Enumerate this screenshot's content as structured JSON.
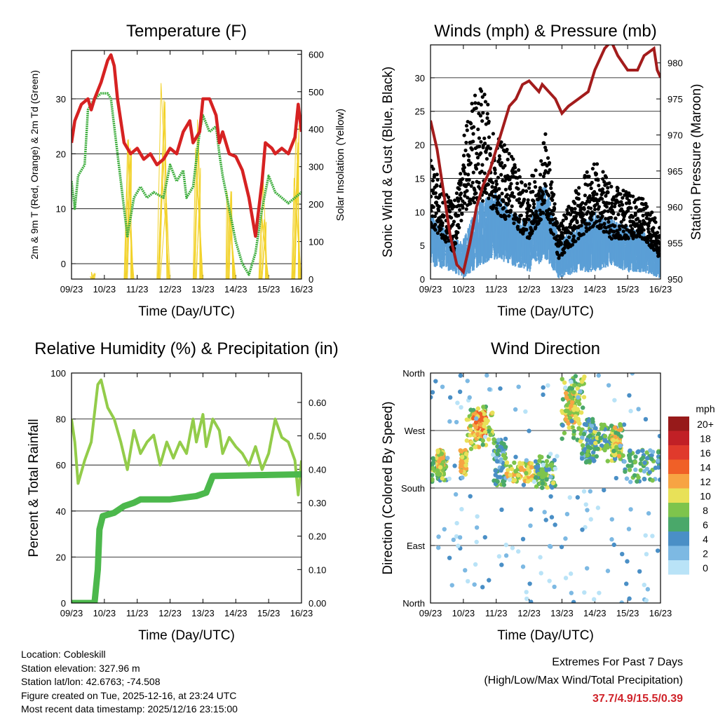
{
  "chart_data": [
    {
      "type": "line",
      "title": "Temperature (F)",
      "xlabel": "Time (Day/UTC)",
      "ylabel": "2m & 9m T (Red, Orange) & 2m Td (Green)",
      "y2label": "Solar Insolation (Yellow)",
      "xticks": [
        "09/23",
        "10/23",
        "11/23",
        "12/23",
        "13/23",
        "14/23",
        "15/23",
        "16/23"
      ],
      "xlim": [
        0,
        7
      ],
      "ylim": [
        -2.8,
        38.8
      ],
      "yticks": [
        0,
        10,
        20,
        30
      ],
      "y2lim": [
        0,
        610
      ],
      "y2ticks": [
        0,
        100,
        200,
        300,
        400,
        500,
        600
      ],
      "grid": true,
      "series": [
        {
          "name": "Temperature",
          "color": "#d62222",
          "points": [
            [
              0,
              22
            ],
            [
              0.1,
              26
            ],
            [
              0.3,
              29
            ],
            [
              0.5,
              30
            ],
            [
              0.6,
              28
            ],
            [
              0.7,
              30
            ],
            [
              0.9,
              33
            ],
            [
              1.1,
              37
            ],
            [
              1.2,
              38
            ],
            [
              1.3,
              36
            ],
            [
              1.4,
              30
            ],
            [
              1.6,
              22
            ],
            [
              1.8,
              20
            ],
            [
              2.0,
              21
            ],
            [
              2.2,
              19
            ],
            [
              2.4,
              20
            ],
            [
              2.6,
              18
            ],
            [
              2.8,
              19
            ],
            [
              3.0,
              21
            ],
            [
              3.2,
              20
            ],
            [
              3.4,
              24
            ],
            [
              3.6,
              26
            ],
            [
              3.7,
              22
            ],
            [
              3.9,
              24
            ],
            [
              4.0,
              30
            ],
            [
              4.2,
              30
            ],
            [
              4.4,
              27
            ],
            [
              4.5,
              22
            ],
            [
              4.6,
              24
            ],
            [
              4.8,
              20
            ],
            [
              5.0,
              19.5
            ],
            [
              5.2,
              17
            ],
            [
              5.4,
              12
            ],
            [
              5.6,
              5
            ],
            [
              5.8,
              15
            ],
            [
              5.9,
              22
            ],
            [
              6.1,
              21
            ],
            [
              6.2,
              20
            ],
            [
              6.4,
              21
            ],
            [
              6.6,
              20
            ],
            [
              6.8,
              23
            ],
            [
              6.9,
              29
            ],
            [
              7.0,
              24
            ]
          ]
        },
        {
          "name": "Dewpoint",
          "color": "#3fae3f",
          "points": [
            [
              0,
              15
            ],
            [
              0.1,
              10
            ],
            [
              0.2,
              16
            ],
            [
              0.4,
              18
            ],
            [
              0.5,
              28
            ],
            [
              0.7,
              30
            ],
            [
              0.9,
              31
            ],
            [
              1.1,
              31
            ],
            [
              1.2,
              30
            ],
            [
              1.4,
              20
            ],
            [
              1.6,
              10
            ],
            [
              1.7,
              5
            ],
            [
              1.9,
              12
            ],
            [
              2.1,
              14
            ],
            [
              2.3,
              12
            ],
            [
              2.5,
              13
            ],
            [
              2.8,
              12
            ],
            [
              3.0,
              18
            ],
            [
              3.2,
              15
            ],
            [
              3.4,
              17
            ],
            [
              3.5,
              12
            ],
            [
              3.7,
              14
            ],
            [
              3.9,
              24
            ],
            [
              4.0,
              27
            ],
            [
              4.2,
              24
            ],
            [
              4.4,
              25
            ],
            [
              4.5,
              20
            ],
            [
              4.6,
              16
            ],
            [
              4.8,
              10
            ],
            [
              5.0,
              4
            ],
            [
              5.2,
              0
            ],
            [
              5.4,
              -2
            ],
            [
              5.6,
              2
            ],
            [
              5.8,
              10
            ],
            [
              6.0,
              16
            ],
            [
              6.2,
              13
            ],
            [
              6.4,
              12
            ],
            [
              6.6,
              11
            ],
            [
              6.8,
              12
            ],
            [
              7.0,
              13
            ]
          ]
        }
      ],
      "solar_spikes": [
        [
          0.6,
          0.65,
          0.7,
          20
        ],
        [
          1.6,
          1.75,
          1.9,
          450
        ],
        [
          2.6,
          2.8,
          3.0,
          600
        ],
        [
          3.7,
          3.85,
          4.0,
          450
        ],
        [
          4.7,
          4.8,
          5.0,
          250
        ],
        [
          5.7,
          5.85,
          6.0,
          300
        ],
        [
          6.7,
          6.85,
          7.0,
          450
        ]
      ],
      "solar_color": "#f2d22a"
    },
    {
      "type": "scatter",
      "title": "Winds (mph) & Pressure (mb)",
      "xlabel": "Time (Day/UTC)",
      "ylabel": "Sonic Wind & Gust (Blue, Black)",
      "y2label": "Station Pressure (Maroon)",
      "xticks": [
        "09/23",
        "10/23",
        "11/23",
        "12/23",
        "13/23",
        "14/23",
        "15/23",
        "16/23"
      ],
      "xlim": [
        0,
        7
      ],
      "ylim": [
        0,
        34.9
      ],
      "yticks": [
        0,
        5,
        10,
        15,
        20,
        25,
        30
      ],
      "y2lim": [
        950,
        982.5
      ],
      "y2ticks": [
        950,
        955,
        960,
        965,
        970,
        975,
        980
      ],
      "grid": true,
      "wind_envelope": [
        [
          0,
          2,
          10
        ],
        [
          0.7,
          1,
          6
        ],
        [
          1.0,
          0,
          6
        ],
        [
          1.5,
          2,
          12
        ],
        [
          2.0,
          3,
          13
        ],
        [
          2.5,
          2,
          10
        ],
        [
          3.0,
          1,
          9
        ],
        [
          3.5,
          3,
          15
        ],
        [
          3.9,
          0,
          6
        ],
        [
          4.5,
          1,
          8
        ],
        [
          5.0,
          1,
          10
        ],
        [
          5.5,
          2,
          9
        ],
        [
          6.0,
          1,
          8
        ],
        [
          6.5,
          1,
          7
        ],
        [
          7.0,
          0,
          4
        ]
      ],
      "gust_envelope": [
        [
          0,
          8,
          18
        ],
        [
          0.7,
          4,
          11
        ],
        [
          1.0,
          10,
          22
        ],
        [
          1.5,
          12,
          30
        ],
        [
          2.0,
          10,
          22
        ],
        [
          2.5,
          8,
          18
        ],
        [
          3.0,
          6,
          14
        ],
        [
          3.5,
          10,
          22
        ],
        [
          3.9,
          3,
          8
        ],
        [
          4.5,
          6,
          14
        ],
        [
          5.0,
          8,
          18
        ],
        [
          5.5,
          6,
          14
        ],
        [
          6.0,
          6,
          13
        ],
        [
          6.5,
          6,
          12
        ],
        [
          7.0,
          3,
          8
        ]
      ],
      "wind_color": "#5b9fd6",
      "gust_color": "#000000",
      "pressure": {
        "color": "#a31c1c",
        "points": [
          [
            0,
            972
          ],
          [
            0.2,
            968
          ],
          [
            0.4,
            962
          ],
          [
            0.6,
            956
          ],
          [
            0.8,
            952
          ],
          [
            1.0,
            951
          ],
          [
            1.2,
            955
          ],
          [
            1.4,
            960
          ],
          [
            1.6,
            963
          ],
          [
            1.8,
            965
          ],
          [
            2.0,
            968
          ],
          [
            2.2,
            971
          ],
          [
            2.4,
            974
          ],
          [
            2.6,
            975
          ],
          [
            2.8,
            977
          ],
          [
            3.0,
            977.5
          ],
          [
            3.3,
            976
          ],
          [
            3.4,
            977
          ],
          [
            3.6,
            976
          ],
          [
            3.8,
            975
          ],
          [
            4.0,
            973
          ],
          [
            4.2,
            974
          ],
          [
            4.5,
            975
          ],
          [
            4.8,
            976
          ],
          [
            5.0,
            979
          ],
          [
            5.3,
            982
          ],
          [
            5.5,
            983
          ],
          [
            5.7,
            981
          ],
          [
            6.0,
            979
          ],
          [
            6.3,
            979
          ],
          [
            6.5,
            981
          ],
          [
            6.8,
            982
          ],
          [
            6.9,
            979
          ],
          [
            7.0,
            978
          ]
        ]
      }
    },
    {
      "type": "line",
      "title": "Relative Humidity (%) & Precipitation (in)",
      "xlabel": "Time (Day/UTC)",
      "ylabel": "Percent & Total Rainfall",
      "xticks": [
        "09/23",
        "10/23",
        "11/23",
        "12/23",
        "13/23",
        "14/23",
        "15/23",
        "16/23"
      ],
      "xlim": [
        0,
        7
      ],
      "ylim": [
        0,
        100
      ],
      "yticks": [
        0,
        20,
        40,
        60,
        80,
        100
      ],
      "y2lim": [
        0,
        0.688
      ],
      "y2ticks": [
        "0.00",
        "0.10",
        "0.20",
        "0.30",
        "0.40",
        "0.50",
        "0.60"
      ],
      "grid": true,
      "series": [
        {
          "name": "Relative Humidity",
          "color": "#93cc4a",
          "points": [
            [
              0,
              80
            ],
            [
              0.1,
              70
            ],
            [
              0.2,
              52
            ],
            [
              0.4,
              62
            ],
            [
              0.6,
              70
            ],
            [
              0.8,
              95
            ],
            [
              0.9,
              97
            ],
            [
              1.1,
              85
            ],
            [
              1.3,
              80
            ],
            [
              1.5,
              70
            ],
            [
              1.7,
              58
            ],
            [
              1.9,
              75
            ],
            [
              2.1,
              65
            ],
            [
              2.3,
              70
            ],
            [
              2.5,
              73
            ],
            [
              2.7,
              60
            ],
            [
              2.9,
              70
            ],
            [
              3.1,
              63
            ],
            [
              3.3,
              70
            ],
            [
              3.5,
              65
            ],
            [
              3.7,
              80
            ],
            [
              3.8,
              70
            ],
            [
              4.0,
              82
            ],
            [
              4.1,
              68
            ],
            [
              4.3,
              80
            ],
            [
              4.5,
              75
            ],
            [
              4.6,
              65
            ],
            [
              4.8,
              72
            ],
            [
              5.0,
              68
            ],
            [
              5.2,
              65
            ],
            [
              5.4,
              60
            ],
            [
              5.6,
              68
            ],
            [
              5.8,
              58
            ],
            [
              6.0,
              65
            ],
            [
              6.2,
              80
            ],
            [
              6.4,
              72
            ],
            [
              6.6,
              70
            ],
            [
              6.8,
              62
            ],
            [
              6.9,
              47
            ],
            [
              7.0,
              62
            ]
          ]
        },
        {
          "name": "Total Precipitation",
          "color": "#4cb84c",
          "axis": "right",
          "points": [
            [
              0,
              0
            ],
            [
              0.7,
              0
            ],
            [
              0.8,
              0.1
            ],
            [
              0.85,
              0.22
            ],
            [
              0.95,
              0.26
            ],
            [
              1.3,
              0.27
            ],
            [
              1.6,
              0.29
            ],
            [
              1.9,
              0.3
            ],
            [
              2.1,
              0.31
            ],
            [
              3.0,
              0.31
            ],
            [
              3.8,
              0.32
            ],
            [
              4.1,
              0.33
            ],
            [
              4.3,
              0.38
            ],
            [
              7.0,
              0.385
            ]
          ]
        }
      ]
    },
    {
      "type": "scatter",
      "title": "Wind Direction",
      "xlabel": "Time (Day/UTC)",
      "ylabel": "Direction (Colored By Speed)",
      "xticks": [
        "09/23",
        "10/23",
        "11/23",
        "12/23",
        "13/23",
        "14/23",
        "15/23",
        "16/23"
      ],
      "xlim": [
        0,
        7
      ],
      "ylim": [
        0,
        360
      ],
      "yticks": [
        "North",
        "East",
        "South",
        "West",
        "North"
      ],
      "grid": true,
      "clusters": [
        [
          0,
          0.5,
          190,
          230,
          7
        ],
        [
          0.2,
          0.4,
          200,
          240,
          10
        ],
        [
          0.9,
          1.1,
          200,
          240,
          10
        ],
        [
          1.1,
          1.9,
          240,
          310,
          9
        ],
        [
          1.3,
          1.7,
          260,
          300,
          12
        ],
        [
          1.9,
          2.3,
          180,
          260,
          5
        ],
        [
          2.3,
          3.2,
          190,
          220,
          10
        ],
        [
          3.2,
          3.8,
          180,
          230,
          7
        ],
        [
          4.0,
          4.7,
          250,
          360,
          8
        ],
        [
          4.1,
          4.5,
          280,
          330,
          10
        ],
        [
          4.6,
          5.0,
          220,
          290,
          5
        ],
        [
          5.0,
          5.9,
          220,
          280,
          7
        ],
        [
          5.5,
          5.8,
          230,
          280,
          9
        ],
        [
          5.9,
          7.0,
          190,
          240,
          5
        ],
        [
          0,
          7,
          0,
          360,
          2
        ]
      ],
      "legend": {
        "title": "mph",
        "labels": [
          "20+",
          "18",
          "16",
          "14",
          "12",
          "10",
          "8",
          "6",
          "4",
          "2",
          "0"
        ],
        "colors": [
          "#971a1a",
          "#c12026",
          "#e03a2c",
          "#f06027",
          "#f7a443",
          "#e8e158",
          "#7ec44c",
          "#4aa86a",
          "#4a8fc6",
          "#7db9e3",
          "#b9e3f7"
        ],
        "placement": "right"
      }
    }
  ],
  "footer": {
    "lines": [
      "Location: Cobleskill",
      "Station elevation: 327.96 m",
      "Station lat/lon: 42.6763; -74.508",
      "Figure created on Tue, 2025-12-16, at 23:24 UTC",
      "Most recent data timestamp: 2025/12/16 23:15:00"
    ],
    "extremes_title": "Extremes For Past 7 Days",
    "extremes_sub": "(High/Low/Max Wind/Total Precipitation)",
    "extremes_values": "37.7/4.9/15.5/0.39",
    "extremes_color": "#d0232a"
  }
}
